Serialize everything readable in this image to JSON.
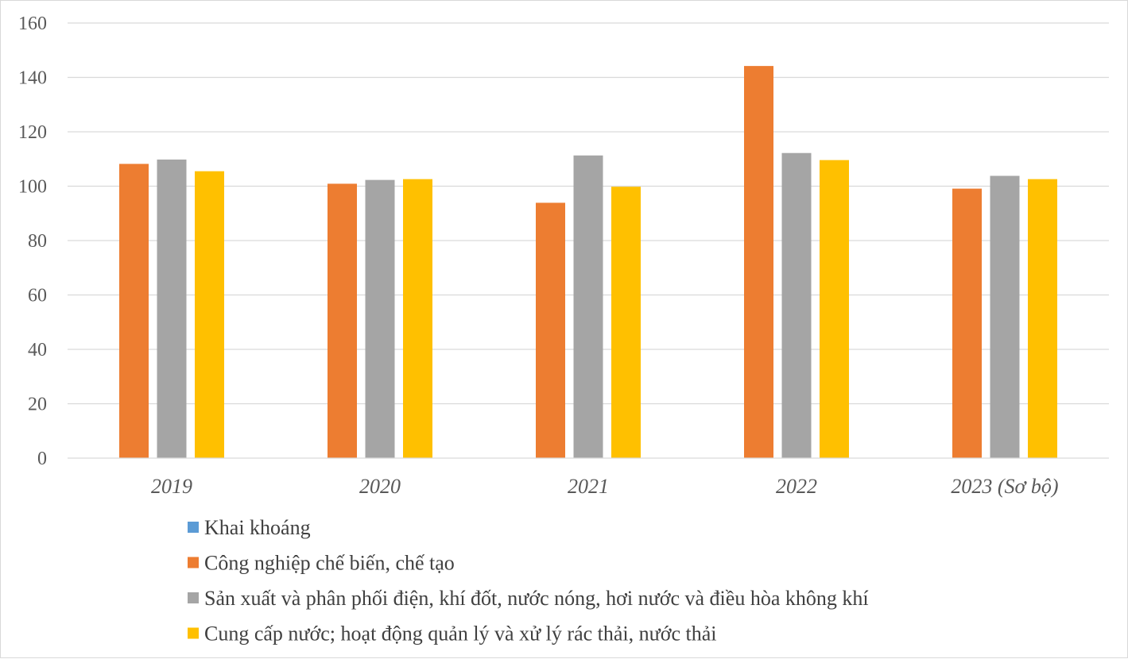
{
  "chart_data": {
    "type": "bar",
    "title": "",
    "xlabel": "",
    "ylabel": "",
    "categories": [
      "2019",
      "2020",
      "2021",
      "2022",
      "2023 (Sơ bộ)"
    ],
    "ylim": [
      0,
      160
    ],
    "yticks": [
      0,
      20,
      40,
      60,
      80,
      100,
      120,
      140,
      160
    ],
    "grid": true,
    "legend_position": "bottom-left",
    "series": [
      {
        "name": "Khai khoáng",
        "color": "#5b9bd5",
        "values": [
          null,
          null,
          null,
          null,
          null
        ]
      },
      {
        "name": "Công nghiệp chế biến, chế tạo",
        "color": "#ed7d31",
        "values": [
          108.2,
          100.9,
          93.9,
          144.2,
          99.1
        ]
      },
      {
        "name": "Sản xuất và phân phối điện, khí đốt, nước nóng, hơi nước và điều hòa không khí",
        "color": "#a5a5a5",
        "values": [
          109.8,
          102.3,
          111.3,
          112.2,
          103.8
        ]
      },
      {
        "name": "Cung cấp nước; hoạt động quản lý và xử lý rác thải, nước thải",
        "color": "#ffc000",
        "values": [
          105.5,
          102.6,
          99.8,
          109.6,
          102.6
        ]
      }
    ]
  }
}
